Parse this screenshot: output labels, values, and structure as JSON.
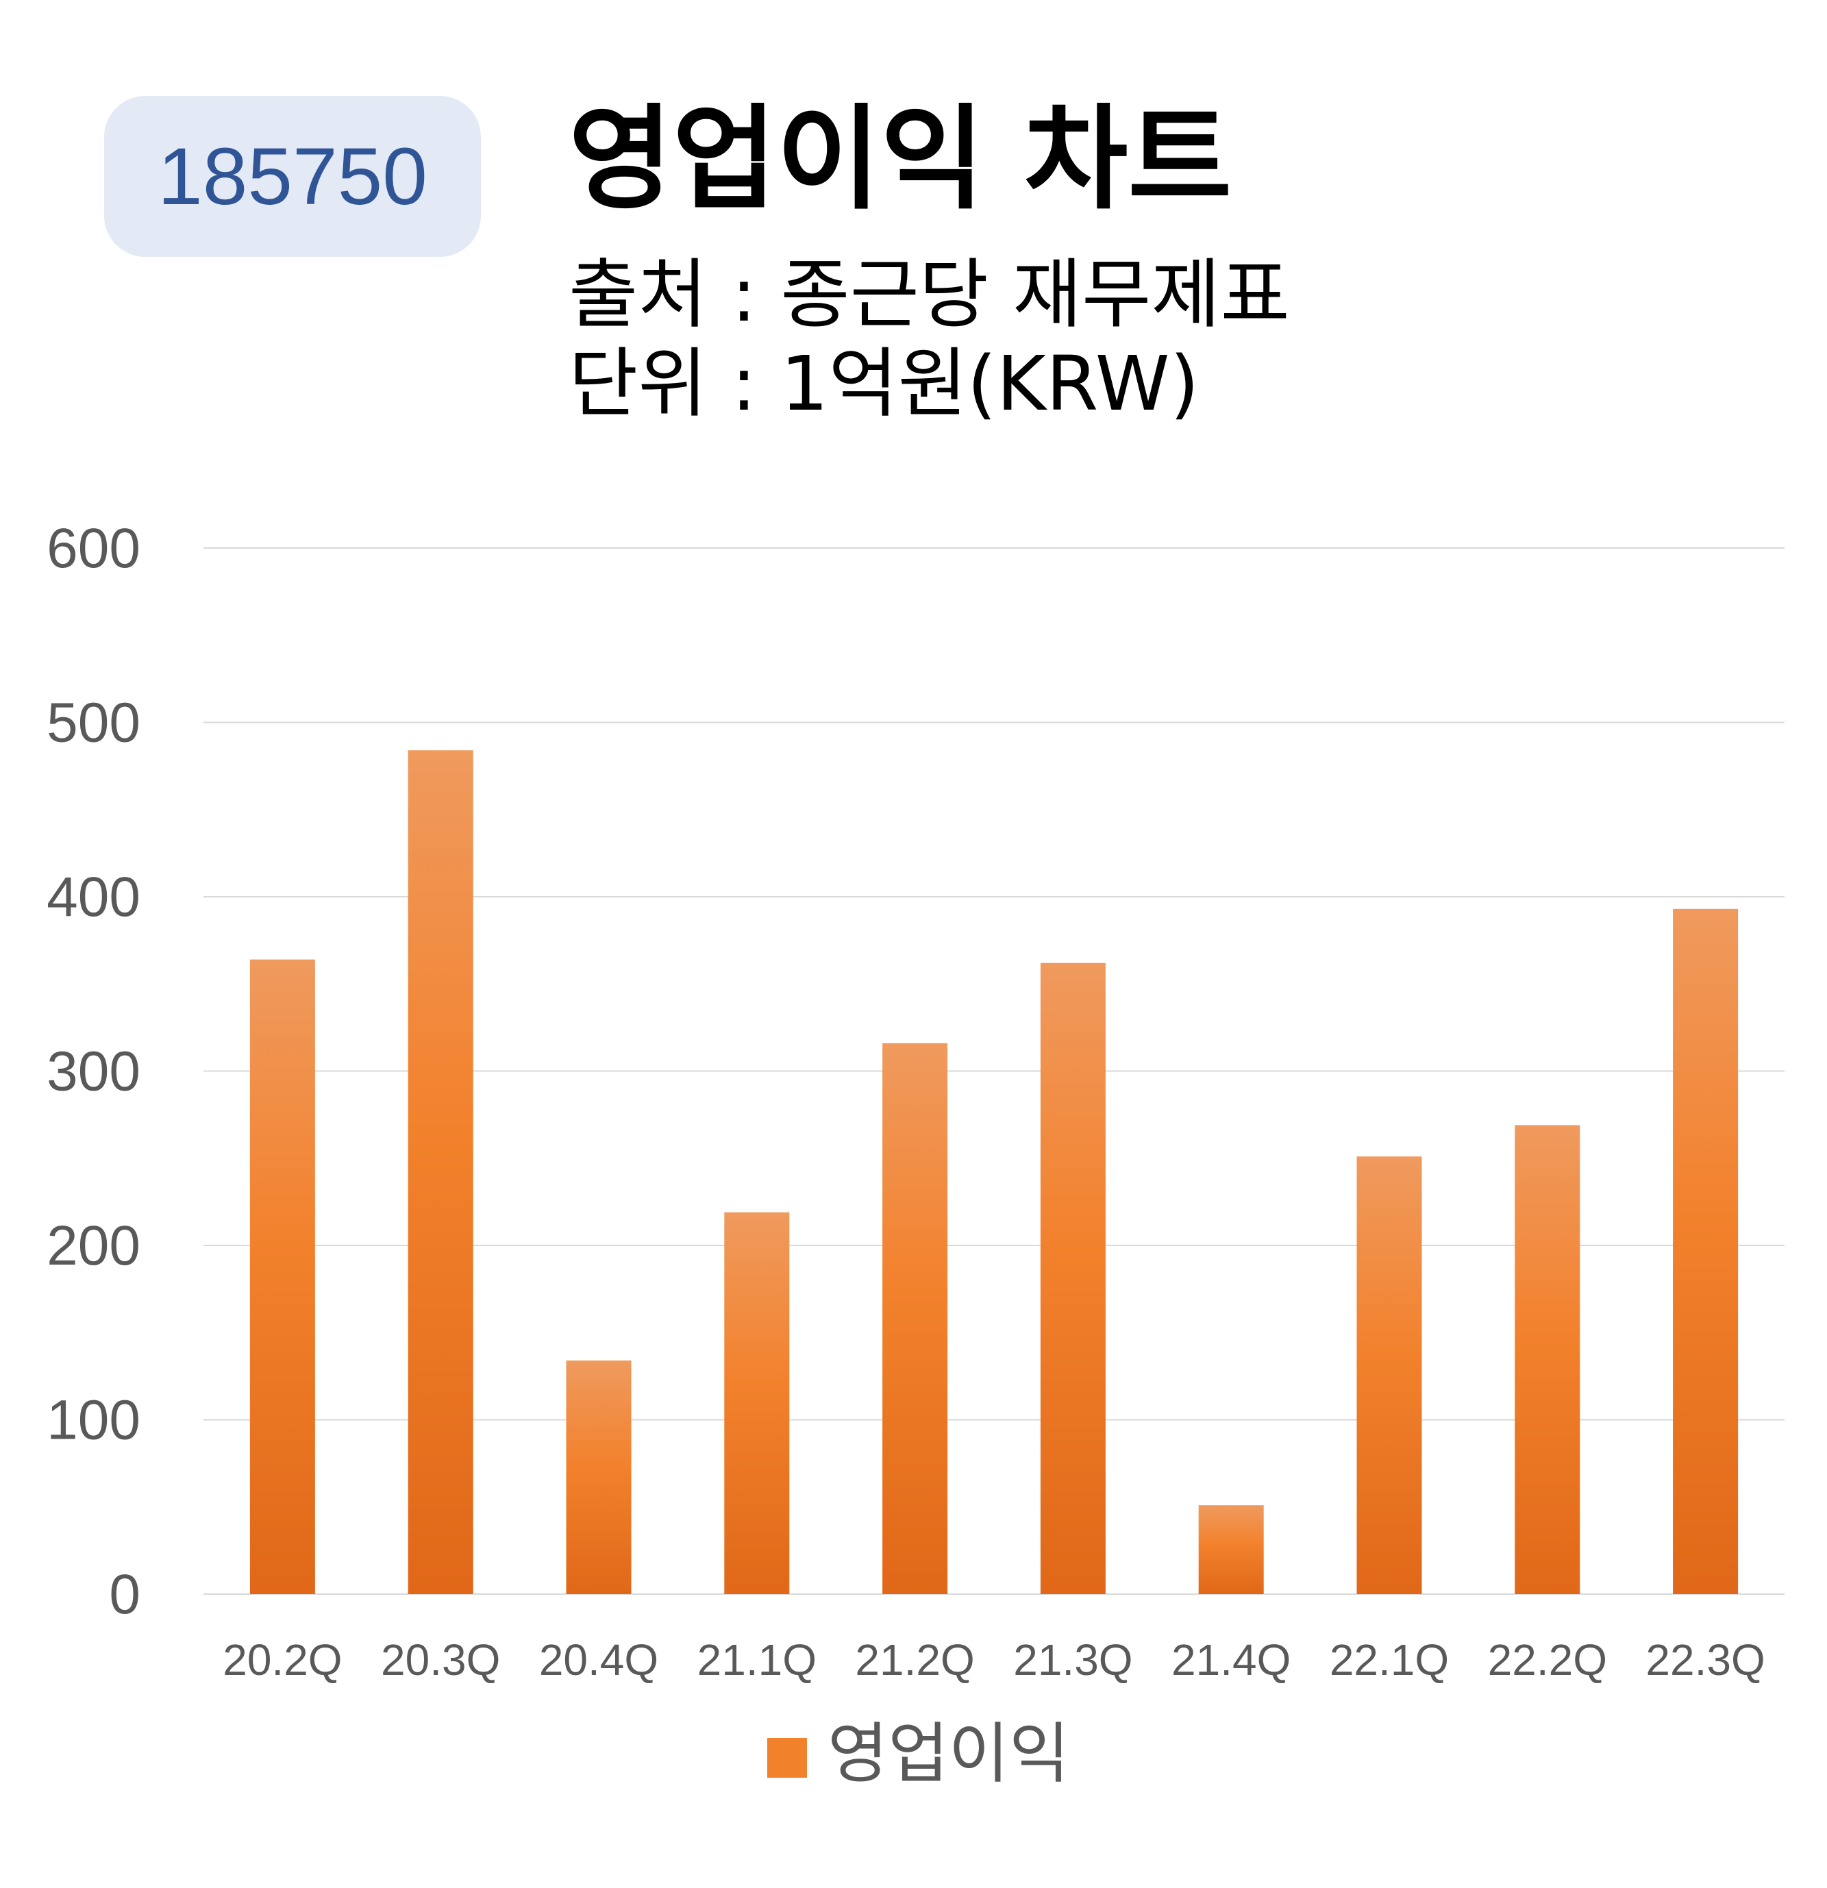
{
  "badge": "185750",
  "title": "영업이익 차트",
  "source_line": "출처 : 종근당 재무제표",
  "unit_line": "단위 : 1억원(KRW)",
  "colors": {
    "bar_top": "#f09a5e",
    "bar_mid": "#f2812c",
    "bar_bottom": "#e06818",
    "grid": "#d9d9d9",
    "axis_text": "#595959",
    "badge_bg": "#e3e9f5",
    "badge_text": "#2f5597"
  },
  "chart_data": {
    "type": "bar",
    "categories": [
      "20.2Q",
      "20.3Q",
      "20.4Q",
      "21.1Q",
      "21.2Q",
      "21.3Q",
      "21.4Q",
      "22.1Q",
      "22.2Q",
      "22.3Q"
    ],
    "series": [
      {
        "name": "영업이익",
        "values": [
          364,
          484,
          134,
          219,
          316,
          362,
          51,
          251,
          269,
          393
        ]
      }
    ],
    "ylim": [
      0,
      600
    ],
    "yticks": [
      "0",
      "100",
      "200",
      "300",
      "400",
      "500",
      "600"
    ],
    "grid": true,
    "legend": "bottom"
  }
}
